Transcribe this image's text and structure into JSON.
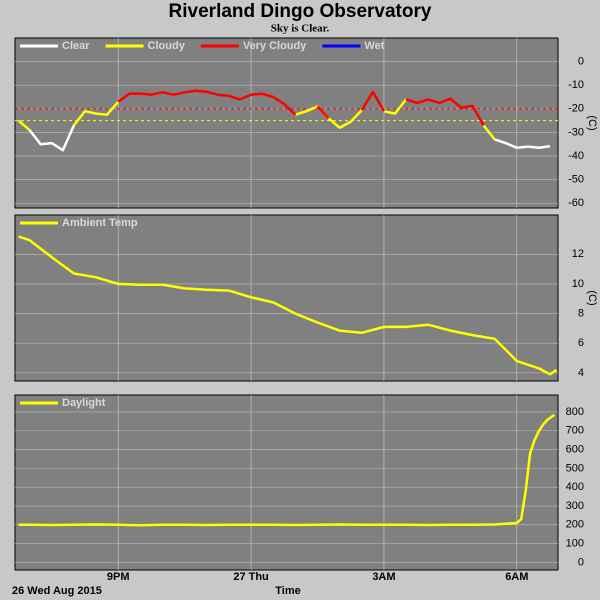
{
  "title": "Riverland Dingo Observatory",
  "subtitle": "Sky is Clear.",
  "x_axis": {
    "xlim": [
      18.67,
      30.93
    ],
    "xticks": [
      {
        "value": 21,
        "label": "9PM"
      },
      {
        "value": 24,
        "label": "27 Thu"
      },
      {
        "value": 27,
        "label": "3AM"
      },
      {
        "value": 30,
        "label": "6AM"
      }
    ],
    "label": "Time",
    "date": "26 Wed Aug 2015"
  },
  "chart_data": [
    {
      "type": "line",
      "ylabel": "(C)",
      "ylim": [
        -62,
        10
      ],
      "yticks": [
        -60,
        -50,
        -40,
        -30,
        -20,
        -10,
        0
      ],
      "grid": true,
      "thresholds": [
        {
          "value": -20,
          "color": "#ff0000"
        },
        {
          "value": -25,
          "color": "#ffff00"
        }
      ],
      "x": [
        18.75,
        19,
        19.25,
        19.5,
        19.75,
        20,
        20.25,
        20.5,
        20.75,
        21,
        21.25,
        21.5,
        21.75,
        22,
        22.25,
        22.5,
        22.75,
        23,
        23.25,
        23.5,
        23.75,
        24,
        24.25,
        24.5,
        24.75,
        25,
        25.25,
        25.5,
        25.75,
        26,
        26.25,
        26.5,
        26.75,
        27,
        27.25,
        27.5,
        27.75,
        28,
        28.25,
        28.5,
        28.75,
        29,
        29.25,
        29.5,
        29.75,
        30,
        30.25,
        30.5,
        30.75
      ],
      "series": [
        {
          "name": "Clear",
          "color": "#ffffff",
          "values": [
            null,
            -29,
            -35,
            -34.5,
            -37.5,
            -27,
            null,
            null,
            null,
            null,
            null,
            null,
            null,
            null,
            null,
            null,
            null,
            null,
            null,
            null,
            null,
            null,
            null,
            null,
            null,
            null,
            null,
            null,
            null,
            -28,
            -25.5,
            null,
            null,
            null,
            null,
            null,
            null,
            null,
            null,
            null,
            null,
            null,
            null,
            -33,
            -34.5,
            -36.5,
            -36,
            -36.5,
            -35.8
          ]
        },
        {
          "name": "Cloudy",
          "color": "#ffff00",
          "values": [
            -25,
            -29,
            null,
            null,
            null,
            -27,
            -21,
            -22,
            -22.5,
            -17,
            null,
            null,
            null,
            null,
            null,
            null,
            null,
            null,
            null,
            null,
            null,
            null,
            null,
            null,
            null,
            -22.5,
            -21,
            -19,
            -24,
            -28,
            -25.5,
            -20.5,
            null,
            -21,
            -22,
            -16,
            null,
            null,
            null,
            null,
            null,
            null,
            -27,
            -33,
            null,
            null,
            null,
            null,
            null
          ]
        },
        {
          "name": "Very Cloudy",
          "color": "#ff0000",
          "values": [
            null,
            null,
            null,
            null,
            null,
            null,
            null,
            null,
            null,
            -17,
            -13.6,
            -13.5,
            -14,
            -13,
            -14,
            -13,
            -12.3,
            -12.8,
            -14,
            -14.5,
            -16,
            -14,
            -13.6,
            -15,
            -18,
            -22.5,
            null,
            -19,
            -24,
            null,
            null,
            -20.5,
            -12.8,
            -21,
            null,
            -16,
            -17.5,
            -16,
            -17.5,
            -15.7,
            -19.6,
            -18.7,
            -27,
            null,
            null,
            null,
            null,
            null,
            null
          ]
        },
        {
          "name": "Wet",
          "color": "#0000ff",
          "values": [
            null,
            null,
            null,
            null,
            null,
            null,
            null,
            null,
            null,
            null,
            null,
            null,
            null,
            null,
            null,
            null,
            null,
            null,
            null,
            null,
            null,
            null,
            null,
            null,
            null,
            null,
            null,
            null,
            null,
            null,
            null,
            null,
            null,
            null,
            null,
            null,
            null,
            null,
            null,
            null,
            null,
            null,
            null,
            null,
            null,
            null,
            null,
            null,
            null
          ]
        }
      ]
    },
    {
      "type": "line",
      "ylabel": "(C)",
      "ylim": [
        3.45,
        14.65
      ],
      "yticks": [
        4,
        6,
        8,
        10,
        12
      ],
      "grid": true,
      "x": [
        18.75,
        19,
        19.5,
        20,
        20.5,
        21,
        21.5,
        22,
        22.5,
        23,
        23.5,
        24,
        24.5,
        25,
        25.5,
        26,
        26.5,
        27,
        27.5,
        28,
        28.5,
        29,
        29.5,
        30,
        30.5,
        30.75,
        30.9
      ],
      "series": [
        {
          "name": "Ambient Temp",
          "color": "#ffff00",
          "values": [
            13.2,
            12.95,
            11.8,
            10.7,
            10.45,
            10.0,
            9.95,
            9.95,
            9.7,
            9.6,
            9.55,
            9.1,
            8.75,
            8.0,
            7.4,
            6.85,
            6.7,
            7.1,
            7.1,
            7.25,
            6.85,
            6.55,
            6.3,
            4.8,
            4.3,
            3.9,
            4.2
          ]
        }
      ]
    },
    {
      "type": "line",
      "ylim": [
        -40,
        890
      ],
      "yticks": [
        0,
        100,
        200,
        300,
        400,
        500,
        600,
        700,
        800
      ],
      "grid": true,
      "x": [
        18.75,
        19,
        19.5,
        20,
        20.5,
        21,
        21.5,
        22,
        22.5,
        23,
        23.5,
        24,
        24.5,
        25,
        25.5,
        26,
        26.5,
        27,
        27.5,
        28,
        28.5,
        29,
        29.5,
        30,
        30.1,
        30.2,
        30.3,
        30.4,
        30.5,
        30.6,
        30.7,
        30.85
      ],
      "series": [
        {
          "name": "Daylight",
          "color": "#ffff00",
          "values": [
            200,
            201,
            199,
            200,
            202,
            200,
            198,
            201,
            200,
            199,
            200,
            200,
            201,
            199,
            200,
            202,
            200,
            201,
            200,
            199,
            201,
            200,
            202,
            210,
            230,
            380,
            580,
            650,
            700,
            735,
            760,
            785
          ]
        }
      ]
    }
  ]
}
